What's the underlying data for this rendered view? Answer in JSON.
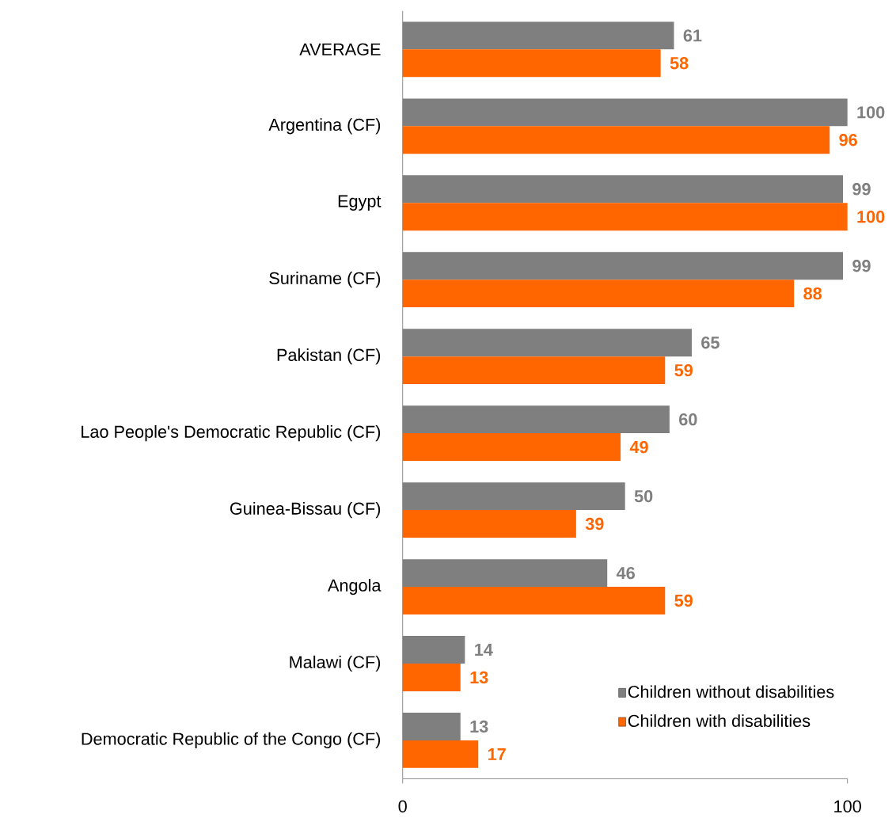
{
  "chart_data": {
    "type": "bar",
    "orientation": "horizontal",
    "categories": [
      "AVERAGE",
      "Argentina (CF)",
      "Egypt",
      "Suriname (CF)",
      "Pakistan (CF)",
      "Lao People's Democratic Republic (CF)",
      "Guinea-Bissau (CF)",
      "Angola",
      "Malawi (CF)",
      "Democratic Republic of the Congo (CF)"
    ],
    "series": [
      {
        "name": "Children without disabilities",
        "color": "#7f7f7f",
        "values": [
          61,
          100,
          99,
          99,
          65,
          60,
          50,
          46,
          14,
          13
        ]
      },
      {
        "name": "Children with disabilities",
        "color": "#ff6600",
        "values": [
          58,
          96,
          100,
          88,
          59,
          49,
          39,
          59,
          13,
          17
        ]
      }
    ],
    "xlim": [
      0,
      100
    ],
    "xticks": [
      0,
      100
    ],
    "data_labels": true,
    "legend": "bottom right",
    "grid": false
  }
}
